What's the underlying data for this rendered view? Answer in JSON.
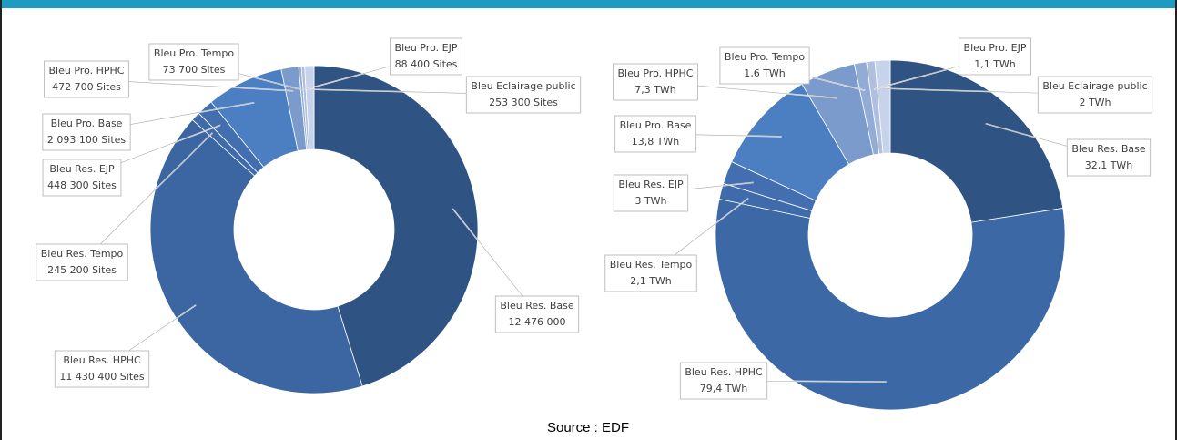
{
  "chart_data": [
    {
      "type": "pie",
      "categories": [
        "Bleu Res. Base",
        "Bleu Res. HPHC",
        "Bleu Res. Tempo",
        "Bleu Res. EJP",
        "Bleu Pro. Base",
        "Bleu Pro. HPHC",
        "Bleu Pro. Tempo",
        "Bleu Pro. EJP",
        "Bleu Eclairage public"
      ],
      "values": [
        12476000,
        11430400,
        245200,
        448300,
        2093100,
        472700,
        73700,
        88400,
        253300
      ],
      "value_labels": [
        "12 476 000",
        "11 430 400 Sites",
        "245 200 Sites",
        "448 300 Sites",
        "2 093 100 Sites",
        "472 700 Sites",
        "73 700 Sites",
        "88 400 Sites",
        "253 300 Sites"
      ],
      "colors": [
        "#2f5382",
        "#3b66a2",
        "#3f6baa",
        "#436fb0",
        "#4b7fc2",
        "#7b9bcc",
        "#93acd6",
        "#aebfe0",
        "#c7d3ea"
      ]
    },
    {
      "type": "pie",
      "categories": [
        "Bleu Res. Base",
        "Bleu Res. HPHC",
        "Bleu Res. Tempo",
        "Bleu Res. EJP",
        "Bleu Pro. Base",
        "Bleu Pro. HPHC",
        "Bleu Pro. Tempo",
        "Bleu Pro. EJP",
        "Bleu Eclairage public"
      ],
      "values": [
        32.1,
        79.4,
        2.1,
        3,
        13.8,
        7.3,
        1.6,
        1.1,
        2
      ],
      "value_labels": [
        "32,1 TWh",
        "79,4 TWh",
        "2,1 TWh",
        "3 TWh",
        "13,8 TWh",
        "7,3 TWh",
        "1,6 TWh",
        "1,1 TWh",
        "2 TWh"
      ],
      "colors": [
        "#2f5382",
        "#3c69a6",
        "#3f6baa",
        "#436fb0",
        "#4b7fc2",
        "#7b9bcc",
        "#93acd6",
        "#aebfe0",
        "#c7d3ea"
      ]
    }
  ],
  "source": "Source : EDF"
}
